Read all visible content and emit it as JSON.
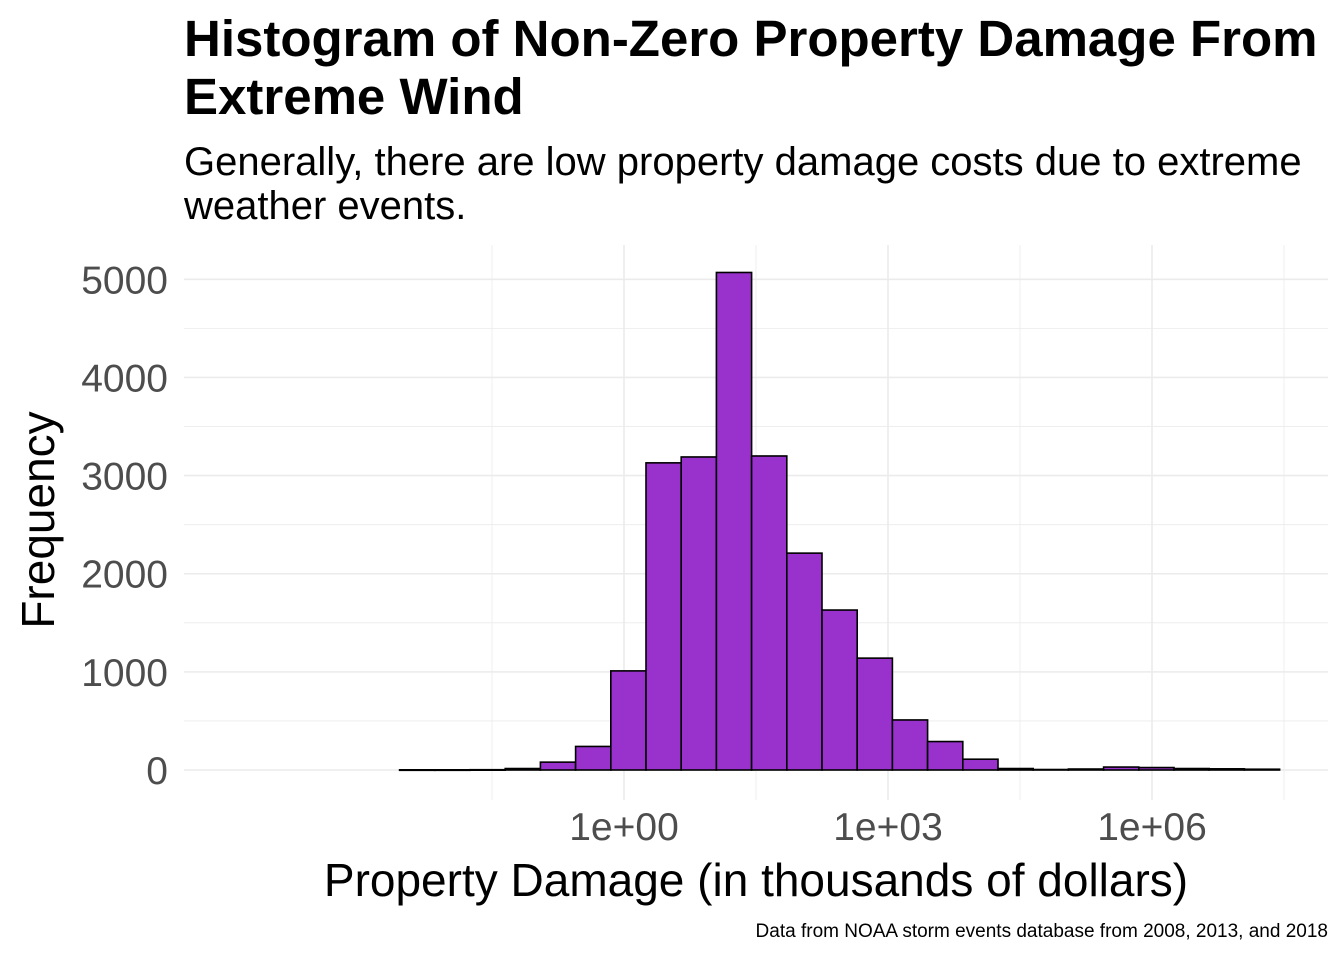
{
  "chart_data": {
    "type": "bar",
    "title": "Histogram of Non-Zero Property Damage From Extreme Wind",
    "subtitle": "Generally, there are low property damage costs due to extreme weather events.",
    "caption": "Data from NOAA storm events database from 2008, 2013, and 2018",
    "xlabel": "Property Damage (in thousands of dollars)",
    "ylabel": "Frequency",
    "x_scale": "log10",
    "xlim": [
      1e-05,
      100000000
    ],
    "ylim": [
      0,
      5000
    ],
    "x_tick_values": [
      1,
      1000,
      1000000
    ],
    "x_tick_labels": [
      "1e+00",
      "1e+03",
      "1e+06"
    ],
    "y_ticks": [
      0,
      1000,
      2000,
      3000,
      4000,
      5000
    ],
    "grid": true,
    "bar_color": "#9932CC",
    "bar_edge_color": "#000000",
    "bin_log10_edges": [
      -2.55,
      -2.15,
      -1.75,
      -1.35,
      -0.95,
      -0.55,
      -0.15,
      0.25,
      0.65,
      1.05,
      1.45,
      1.85,
      2.25,
      2.65,
      3.05,
      3.45,
      3.85,
      4.25,
      4.65,
      5.05,
      5.45,
      5.85,
      6.25,
      6.65,
      7.05,
      7.45
    ],
    "values": [
      2,
      2,
      3,
      15,
      80,
      240,
      1010,
      3130,
      3190,
      5070,
      3200,
      2210,
      1630,
      1140,
      510,
      290,
      110,
      15,
      5,
      10,
      30,
      25,
      15,
      12,
      8
    ]
  }
}
